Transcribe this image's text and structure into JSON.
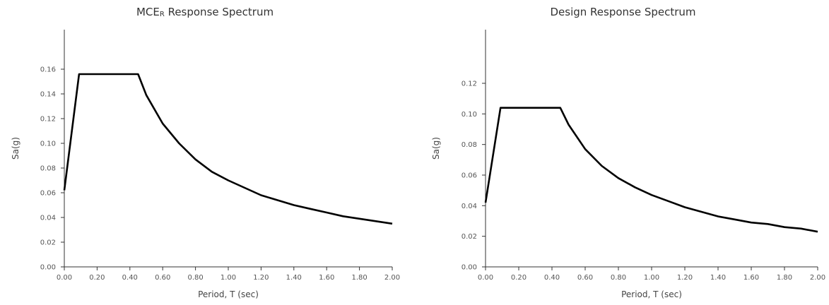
{
  "chart_data": [
    {
      "type": "line",
      "title_main": "MCE",
      "title_sub": "R",
      "title_rest": " Response Spectrum",
      "xlabel": "Period, T (sec)",
      "ylabel": "Sa(g)",
      "xlim": [
        0,
        2.0
      ],
      "ylim": [
        0,
        0.18
      ],
      "xticks": [
        "0.00",
        "0.20",
        "0.40",
        "0.60",
        "0.80",
        "1.00",
        "1.20",
        "1.40",
        "1.60",
        "1.80",
        "2.00"
      ],
      "yticks": [
        "0.00",
        "0.02",
        "0.04",
        "0.06",
        "0.08",
        "0.10",
        "0.12",
        "0.14",
        "0.16"
      ],
      "grid": false,
      "series": [
        {
          "x": [
            0.0,
            0.09,
            0.45,
            0.5,
            0.6,
            0.7,
            0.8,
            0.9,
            1.0,
            1.1,
            1.2,
            1.3,
            1.4,
            1.5,
            1.6,
            1.7,
            1.8,
            1.9,
            2.0
          ],
          "y": [
            0.062,
            0.156,
            0.156,
            0.139,
            0.116,
            0.1,
            0.087,
            0.077,
            0.07,
            0.064,
            0.058,
            0.054,
            0.05,
            0.047,
            0.044,
            0.041,
            0.039,
            0.037,
            0.035
          ]
        }
      ]
    },
    {
      "type": "line",
      "title": "Design Response Spectrum",
      "xlabel": "Period, T (sec)",
      "ylabel": "Sa(g)",
      "xlim": [
        0,
        2.0
      ],
      "ylim": [
        0,
        0.14
      ],
      "xticks": [
        "0.00",
        "0.20",
        "0.40",
        "0.60",
        "0.80",
        "1.00",
        "1.20",
        "1.40",
        "1.60",
        "1.80",
        "2.00"
      ],
      "yticks": [
        "0.00",
        "0.02",
        "0.04",
        "0.06",
        "0.08",
        "0.10",
        "0.12"
      ],
      "grid": false,
      "series": [
        {
          "x": [
            0.0,
            0.09,
            0.45,
            0.5,
            0.6,
            0.7,
            0.8,
            0.9,
            1.0,
            1.1,
            1.2,
            1.3,
            1.4,
            1.5,
            1.6,
            1.7,
            1.8,
            1.9,
            2.0
          ],
          "y": [
            0.042,
            0.104,
            0.104,
            0.093,
            0.077,
            0.066,
            0.058,
            0.052,
            0.047,
            0.043,
            0.039,
            0.036,
            0.033,
            0.031,
            0.029,
            0.028,
            0.026,
            0.025,
            0.023
          ]
        }
      ]
    }
  ]
}
